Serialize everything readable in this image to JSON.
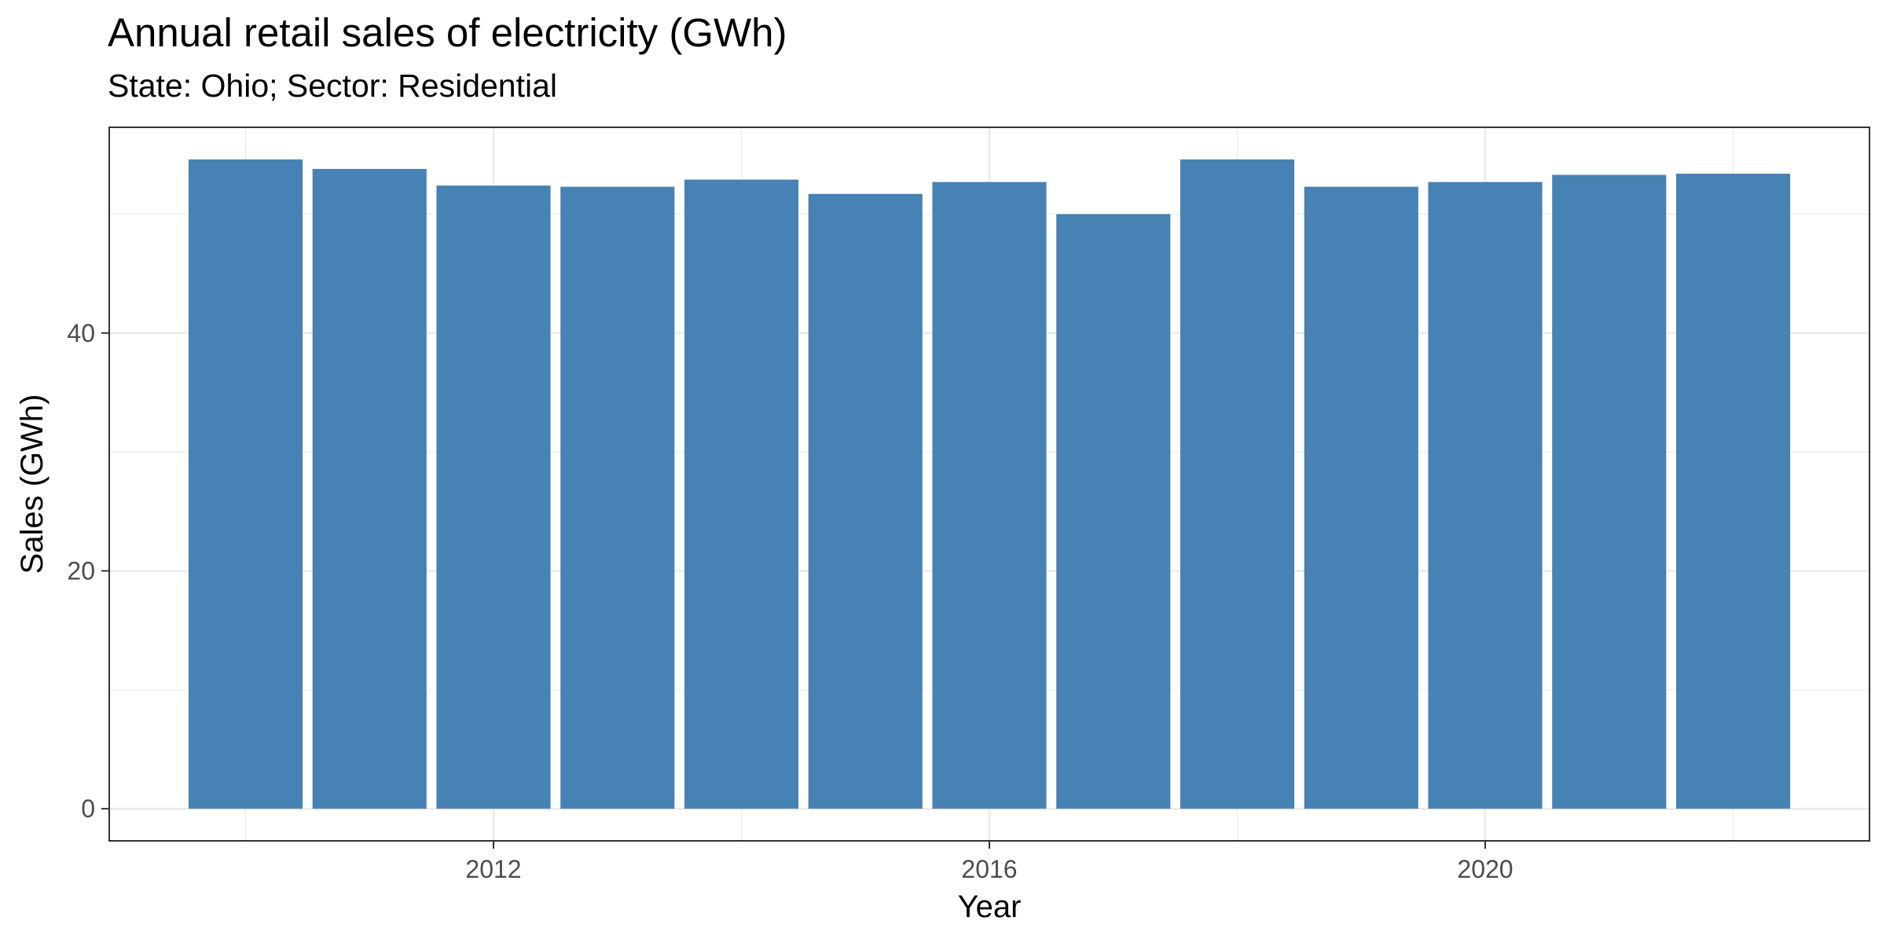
{
  "chart_data": {
    "type": "bar",
    "title": "Annual retail sales of electricity (GWh)",
    "subtitle": "State: Ohio; Sector: Residential",
    "xlabel": "Year",
    "ylabel": "Sales (GWh)",
    "categories": [
      2010,
      2011,
      2012,
      2013,
      2014,
      2015,
      2016,
      2017,
      2018,
      2019,
      2020,
      2021,
      2022
    ],
    "values": [
      54.6,
      53.8,
      52.4,
      52.3,
      52.9,
      51.7,
      52.7,
      50.0,
      54.6,
      52.3,
      52.7,
      53.3,
      53.4
    ],
    "x_ticks": [
      2012,
      2016,
      2020
    ],
    "y_ticks": [
      0,
      20,
      40
    ],
    "xlim": [
      2008.9,
      2023.1
    ],
    "ylim": [
      -2.7,
      57.3
    ],
    "bar_color": "#4682B4",
    "grid": true,
    "legend": "none"
  }
}
